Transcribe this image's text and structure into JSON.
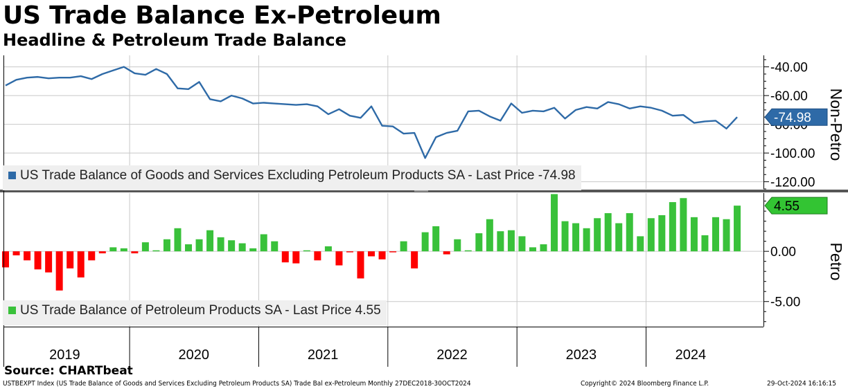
{
  "header": {
    "title": "US Trade Balance Ex-Petroleum",
    "subtitle": "Headline & Petroleum Trade Balance"
  },
  "source": "Source: CHARTbeat",
  "footer": {
    "index_desc": "USTBEXPT Index (US Trade Balance of Goods and Services Excluding Petroleum Products SA) Trade Bal ex-Petroleum  Monthly 27DEC2018-30OCT2024",
    "copyright": "Copyright© 2024 Bloomberg Finance L.P.",
    "timestamp": "29-Oct-2024 16:16:15"
  },
  "colors": {
    "line": "#2e6aa7",
    "positive_bar": "#39c13a",
    "negative_bar": "#ff0000",
    "last_price_green": "#33c433",
    "grid": "#c8c8c8"
  },
  "chart_data": [
    {
      "type": "line",
      "panel": "top",
      "axis_title": "Non-Petro",
      "ylim": [
        -125,
        -32
      ],
      "yticks": [
        -40,
        -60,
        -80,
        -100,
        -120
      ],
      "ytick_labels": [
        "-40.00",
        "-60.00",
        "-80.00",
        "-100.00",
        "-120.00"
      ],
      "legend": "US Trade Balance of Goods and Services Excluding Petroleum Products SA - Last Price -74.98",
      "last_value": -74.98,
      "last_label": "-74.98",
      "x_start": "2019-01",
      "series": [
        {
          "name": "US Trade Balance of Goods and Services Excluding Petroleum Products SA",
          "values": [
            -53,
            -49,
            -47.5,
            -47,
            -48,
            -47.5,
            -47.5,
            -46.5,
            -48.5,
            -45,
            -42.5,
            -40,
            -44.5,
            -45.5,
            -41.5,
            -45,
            -55,
            -55.5,
            -50.5,
            -62.5,
            -64,
            -60,
            -62,
            -65.5,
            -65,
            -65.5,
            -66,
            -66.5,
            -66,
            -67.5,
            -73,
            -69.5,
            -74,
            -75.5,
            -67.5,
            -81,
            -81.5,
            -86.5,
            -86,
            -103.5,
            -89,
            -86,
            -84.5,
            -71,
            -70.5,
            -74.5,
            -77.5,
            -65.5,
            -72,
            -70.5,
            -71,
            -68.5,
            -76,
            -70,
            -68,
            -69,
            -64.5,
            -66,
            -69,
            -67.5,
            -68.5,
            -70.5,
            -74,
            -73.5,
            -79,
            -78,
            -77.5,
            -83,
            -75
          ]
        }
      ]
    },
    {
      "type": "bar",
      "panel": "bottom",
      "axis_title": "Petro",
      "ylim": [
        -7.5,
        5.8
      ],
      "yticks": [
        0,
        -5
      ],
      "ytick_labels": [
        "0.00",
        "-5.00"
      ],
      "legend": "US Trade Balance of Petroleum Products SA - Last Price 4.55",
      "last_value": 4.55,
      "last_label": "4.55",
      "x_start": "2019-01",
      "x_tick_labels": [
        "2019",
        "2020",
        "2021",
        "2022",
        "2023",
        "2024"
      ],
      "series": [
        {
          "name": "US Trade Balance of Petroleum Products SA",
          "values": [
            -1.6,
            -0.4,
            -0.9,
            -1.8,
            -2.1,
            -3.9,
            -1.7,
            -2.6,
            -0.9,
            -0.2,
            0.4,
            0.3,
            -0.2,
            0.9,
            0.1,
            1.2,
            2.3,
            0.7,
            1.2,
            2.1,
            1.4,
            1.1,
            0.8,
            0.3,
            1.7,
            1.0,
            -1.1,
            -1.2,
            0.1,
            -0.9,
            0.5,
            -1.4,
            -0.1,
            -2.7,
            -0.5,
            -0.8,
            -0.1,
            1.0,
            -1.7,
            1.9,
            2.5,
            -0.3,
            1.2,
            0.1,
            1.8,
            3.2,
            2.0,
            2.1,
            1.5,
            0.4,
            0.7,
            5.7,
            3.0,
            2.8,
            2.3,
            3.3,
            3.8,
            2.8,
            3.8,
            1.5,
            3.3,
            3.6,
            4.9,
            5.3,
            3.4,
            1.6,
            3.4,
            3.2,
            4.55
          ]
        }
      ]
    }
  ]
}
